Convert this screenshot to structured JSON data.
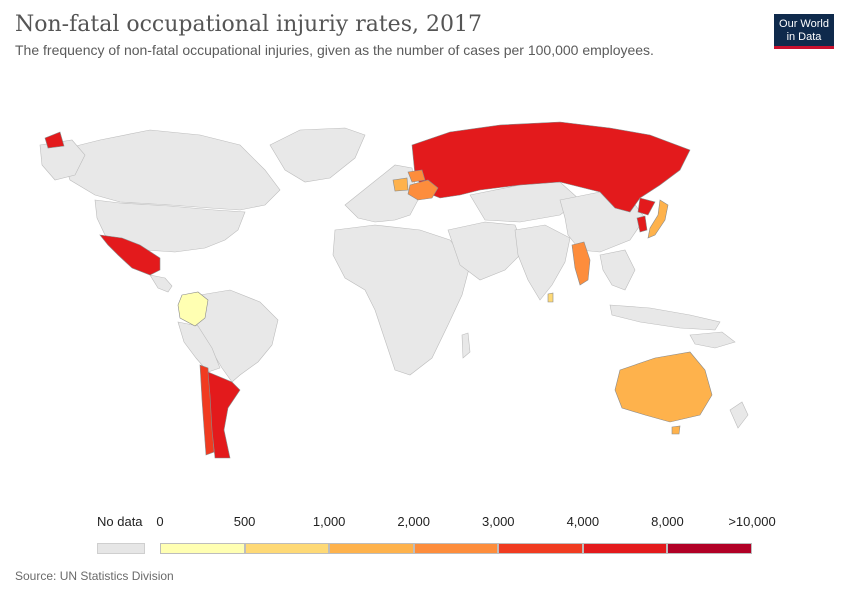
{
  "header": {
    "title": "Non-fatal occupational injuriy rates, 2017",
    "subtitle": "The frequency of non-fatal occupational injuries, given as the number of cases per 100,000 employees.",
    "logo_line1": "Our World",
    "logo_line2": "in Data"
  },
  "legend": {
    "no_data_label": "No data",
    "no_data_color": "#e6e6e6",
    "tick_labels": [
      "0",
      "500",
      "1,000",
      "2,000",
      "3,000",
      "4,000",
      "8,000",
      ">10,000"
    ],
    "bin_colors": [
      "#ffffb2",
      "#fed976",
      "#feb24c",
      "#fd8d3c",
      "#f03b20",
      "#e31a1c",
      "#b10026"
    ]
  },
  "footer": {
    "source": "Source: UN Statistics Division"
  },
  "map_colors": {
    "ocean": "#ffffff",
    "no_data_land": "#e8e8e8",
    "border": "#bdbdbd"
  }
}
